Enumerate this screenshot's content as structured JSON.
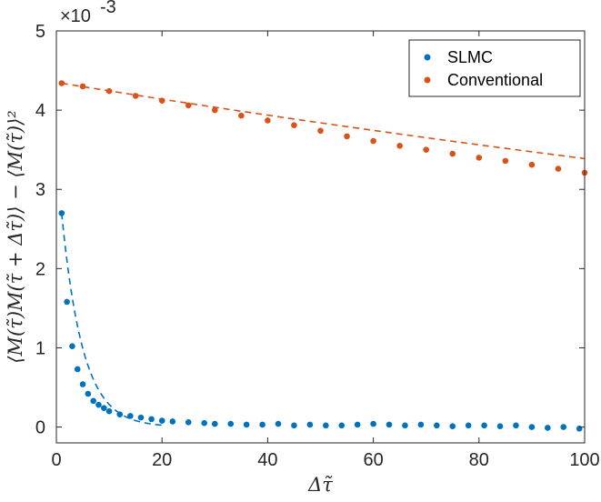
{
  "chart_data": {
    "type": "scatter",
    "xlabel": "Δτ̃",
    "ylabel": "⟨M(τ̃)M(τ̃ + Δτ̃)⟩ − ⟨M(τ̃)⟩²",
    "y_exponent_label": "×10",
    "y_exponent_power": "-3",
    "xlim": [
      0,
      100
    ],
    "ylim": [
      -0.2,
      5
    ],
    "x_ticks": [
      0,
      20,
      40,
      60,
      80,
      100
    ],
    "x_tick_labels": [
      "0",
      "20",
      "40",
      "60",
      "80",
      "100"
    ],
    "y_ticks": [
      0,
      1,
      2,
      3,
      4,
      5
    ],
    "y_tick_labels": [
      "0",
      "1",
      "2",
      "3",
      "4",
      "5"
    ],
    "y_units_note": "values in units of 1e-3",
    "grid": false,
    "legend_position": "top-right",
    "series": [
      {
        "name": "SLMC",
        "color": "#0072BD",
        "marker": "dot",
        "x": [
          1,
          2,
          3,
          4,
          5,
          6,
          7,
          8,
          9,
          10,
          12,
          14,
          16,
          18,
          20,
          22,
          25,
          28,
          30,
          33,
          36,
          39,
          42,
          45,
          48,
          51,
          54,
          57,
          60,
          63,
          66,
          69,
          72,
          75,
          78,
          81,
          84,
          87,
          90,
          93,
          96,
          99
        ],
        "values": [
          2.7,
          1.58,
          1.02,
          0.73,
          0.54,
          0.42,
          0.33,
          0.28,
          0.24,
          0.2,
          0.16,
          0.14,
          0.12,
          0.1,
          0.08,
          0.07,
          0.06,
          0.05,
          0.04,
          0.04,
          0.03,
          0.03,
          0.04,
          0.02,
          0.03,
          0.02,
          0.02,
          0.03,
          0.04,
          0.03,
          0.02,
          0.03,
          0.02,
          0.01,
          0.02,
          0.02,
          0.01,
          0.02,
          0.0,
          -0.01,
          0.0,
          -0.02
        ]
      },
      {
        "name": "Conventional",
        "color": "#D95319",
        "marker": "dot",
        "x": [
          1,
          5,
          10,
          15,
          20,
          25,
          30,
          35,
          40,
          45,
          50,
          55,
          60,
          65,
          70,
          75,
          80,
          85,
          90,
          95,
          100
        ],
        "values": [
          4.34,
          4.3,
          4.24,
          4.18,
          4.12,
          4.06,
          4.0,
          3.93,
          3.87,
          3.81,
          3.74,
          3.67,
          3.61,
          3.55,
          3.5,
          3.45,
          3.4,
          3.36,
          3.31,
          3.26,
          3.21
        ]
      }
    ],
    "fits": [
      {
        "series": "SLMC",
        "style": "dashed",
        "color": "#0072BD",
        "amplitude": 2.7,
        "decay": 4.0,
        "x_start": 1,
        "x_end": 20
      },
      {
        "series": "Conventional",
        "style": "dashed",
        "color": "#D95319",
        "amplitude": 4.34,
        "decay": 400,
        "x_start": 1,
        "x_end": 100
      }
    ]
  }
}
